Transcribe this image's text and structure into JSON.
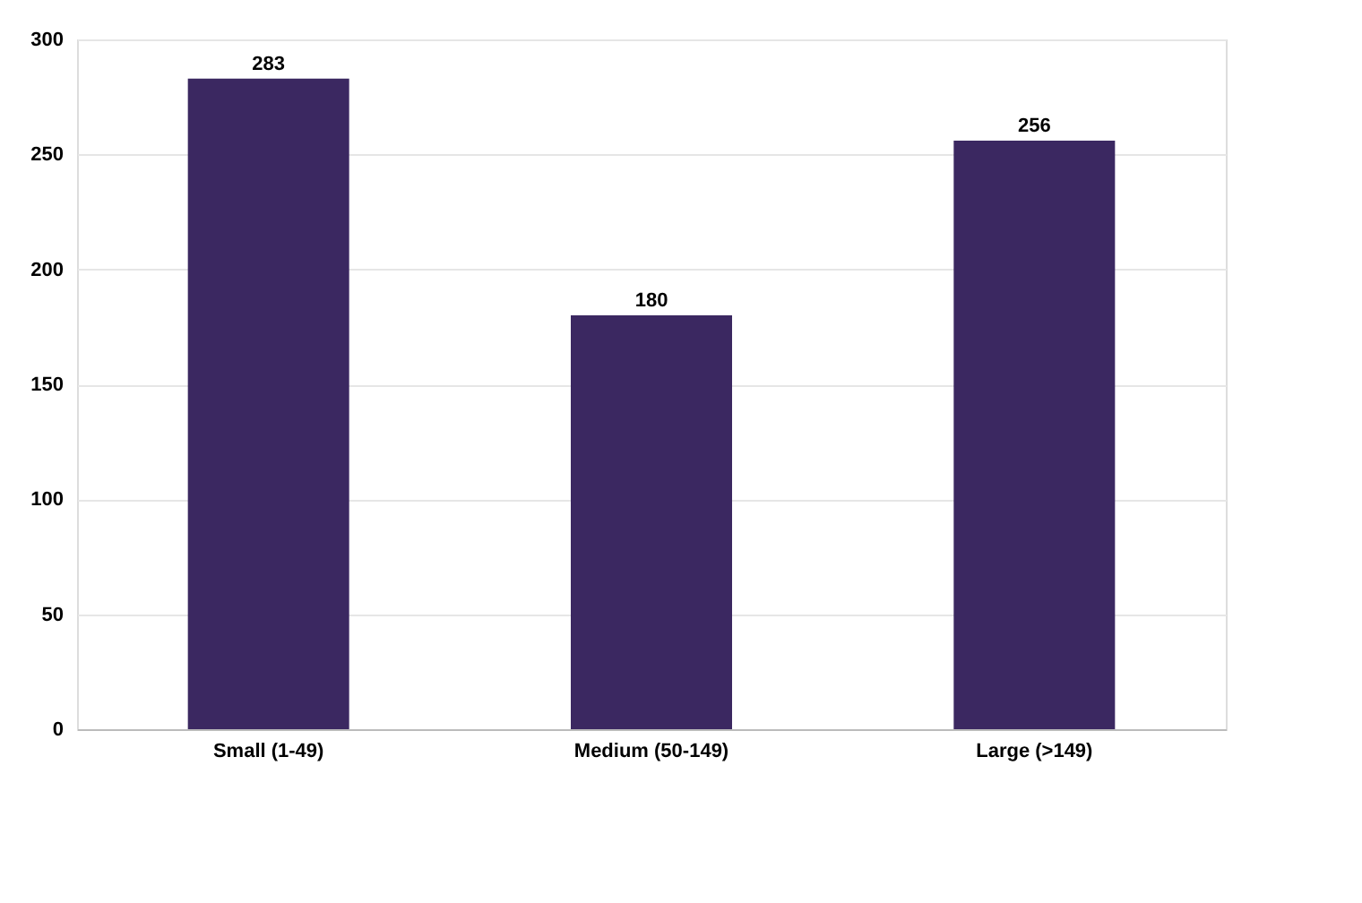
{
  "chart_data": {
    "type": "bar",
    "categories": [
      "Small (1-49)",
      "Medium (50-149)",
      "Large (>149)"
    ],
    "values": [
      283,
      180,
      256
    ],
    "color": "#3b2861",
    "ylim": [
      0,
      300
    ],
    "yticks": [
      0,
      50,
      100,
      150,
      200,
      250,
      300
    ],
    "grid": "y",
    "data_labels": true
  }
}
